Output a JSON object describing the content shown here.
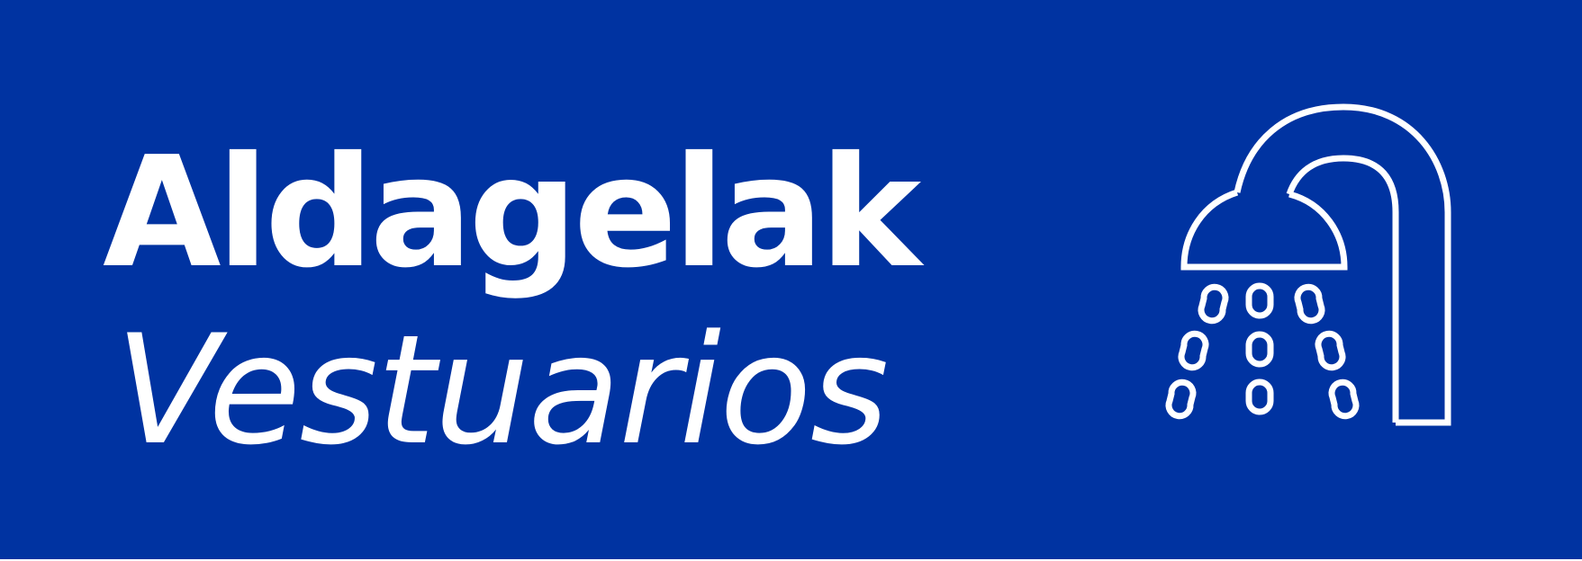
{
  "sign": {
    "background_color": "#0033A1",
    "foreground_color": "#FFFFFF",
    "title_basque": "Aldagelak",
    "title_spanish": "Vestuarios",
    "icon": "shower-icon"
  }
}
